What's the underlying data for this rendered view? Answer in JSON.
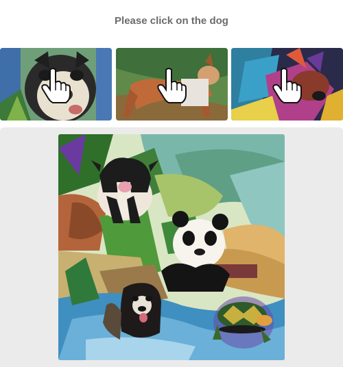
{
  "prompt": {
    "text": "Please click on the dog"
  },
  "examples": [
    {
      "subject": "dog",
      "icon": "hand-pointer-icon"
    },
    {
      "subject": "dog",
      "icon": "hand-pointer-icon"
    },
    {
      "subject": "dog",
      "icon": "hand-pointer-icon"
    }
  ],
  "challenge": {
    "animals": [
      "cow",
      "panda",
      "dog",
      "turtle"
    ]
  },
  "colors": {
    "panel_bg": "#ebebeb",
    "prompt_text": "#6b6b6b"
  }
}
